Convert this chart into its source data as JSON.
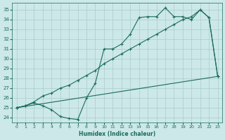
{
  "background_color": "#cce8e8",
  "grid_color": "#aacccc",
  "line_color": "#1a6b5a",
  "xlabel": "Humidex (Indice chaleur)",
  "xlim": [
    -0.5,
    23.5
  ],
  "ylim": [
    23.5,
    35.7
  ],
  "xticks": [
    0,
    1,
    2,
    3,
    4,
    5,
    6,
    7,
    8,
    9,
    10,
    11,
    12,
    13,
    14,
    15,
    16,
    17,
    18,
    19,
    20,
    21,
    22,
    23
  ],
  "yticks": [
    24,
    25,
    26,
    27,
    28,
    29,
    30,
    31,
    32,
    33,
    34,
    35
  ],
  "line1_x": [
    0,
    1,
    2,
    3,
    4,
    5,
    6,
    7,
    8,
    9,
    10,
    11,
    12,
    13,
    14,
    15,
    16,
    17,
    18,
    19,
    20,
    21,
    22,
    23
  ],
  "line1_y": [
    25.0,
    25.2,
    25.5,
    25.2,
    24.8,
    24.1,
    23.9,
    23.8,
    26.0,
    27.5,
    31.0,
    31.0,
    31.5,
    32.5,
    34.2,
    34.3,
    34.3,
    35.2,
    34.3,
    34.3,
    34.0,
    35.0,
    34.2,
    28.2
  ],
  "line2_x": [
    0,
    1,
    2,
    3,
    4,
    5,
    6,
    7,
    8,
    9,
    10,
    11,
    12,
    13,
    14,
    15,
    16,
    17,
    18,
    19,
    20,
    21,
    22,
    23
  ],
  "line2_y": [
    25.0,
    25.2,
    25.6,
    26.2,
    26.5,
    27.0,
    27.3,
    27.8,
    28.3,
    28.8,
    29.5,
    30.0,
    30.5,
    31.0,
    31.5,
    32.0,
    32.5,
    33.0,
    33.5,
    34.0,
    34.3,
    35.0,
    34.2,
    28.2
  ],
  "line3_x": [
    0,
    23
  ],
  "line3_y": [
    25.0,
    28.2
  ]
}
